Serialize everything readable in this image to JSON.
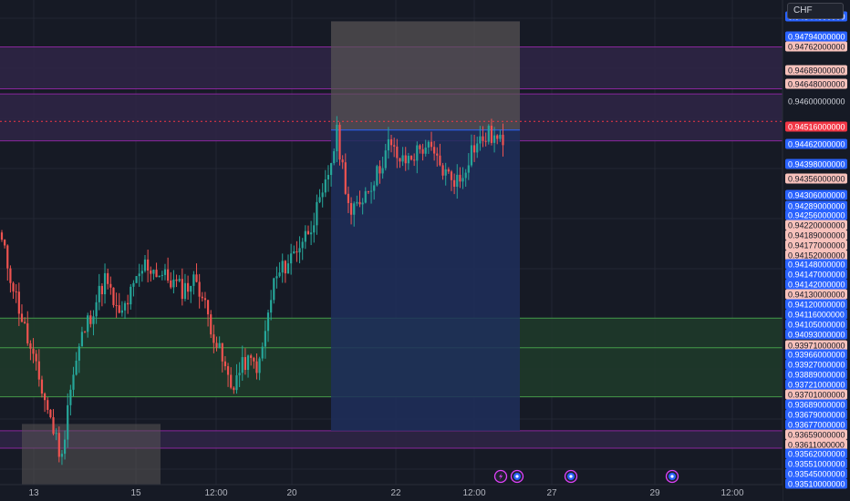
{
  "toolbar": {
    "currency": "CHF"
  },
  "colors": {
    "background": "#161a25",
    "up": "#26a69a",
    "down": "#ef5350",
    "grid": "#232734",
    "zone_purple": "#2d2545",
    "zone_green": "#1e3a2a",
    "zone_grey": "#5a5656",
    "target_blue": "#1e2f5c",
    "label_blue": "#2962ff",
    "label_salmon": "#f7c1bb",
    "label_red": "#f23645"
  },
  "chart_data": {
    "type": "candlestick",
    "ylim": [
      0.9351,
      0.94852
    ],
    "x_ticks": [
      "13",
      "15",
      "12:00",
      "20",
      "22",
      "12:00",
      "27",
      "29",
      "12:00"
    ],
    "price_labels": [
      {
        "text": "0.94844000000",
        "style": "blue"
      },
      {
        "text": "0.94794000000",
        "style": "blue"
      },
      {
        "text": "0.94762000000",
        "style": "salmon"
      },
      {
        "text": "0.94689000000",
        "style": "salmon"
      },
      {
        "text": "0.94648000000",
        "style": "salmon"
      },
      {
        "text": "0.94600000000",
        "style": "plain"
      },
      {
        "text": "0.94516000000",
        "style": "red"
      },
      {
        "text": "0.94462000000",
        "style": "blue"
      },
      {
        "text": "0.94398000000",
        "style": "blue"
      },
      {
        "text": "0.94356000000",
        "style": "salmon"
      },
      {
        "text": "0.94306000000",
        "style": "blue"
      },
      {
        "text": "0.94289000000",
        "style": "blue"
      },
      {
        "text": "0.94256000000",
        "style": "blue"
      },
      {
        "text": "0.94220000000",
        "style": "salmon"
      },
      {
        "text": "0.94189000000",
        "style": "salmon"
      },
      {
        "text": "0.94177000000",
        "style": "salmon"
      },
      {
        "text": "0.94152000000",
        "style": "salmon"
      },
      {
        "text": "0.94148000000",
        "style": "blue"
      },
      {
        "text": "0.94147000000",
        "style": "blue"
      },
      {
        "text": "0.94142000000",
        "style": "blue"
      },
      {
        "text": "0.94130000000",
        "style": "salmon"
      },
      {
        "text": "0.94120000000",
        "style": "blue"
      },
      {
        "text": "0.94116000000",
        "style": "blue"
      },
      {
        "text": "0.94105000000",
        "style": "blue"
      },
      {
        "text": "0.94093000000",
        "style": "blue"
      },
      {
        "text": "0.93971000000",
        "style": "salmon"
      },
      {
        "text": "0.93966000000",
        "style": "blue"
      },
      {
        "text": "0.93927000000",
        "style": "blue"
      },
      {
        "text": "0.93889000000",
        "style": "blue"
      },
      {
        "text": "0.93721000000",
        "style": "blue"
      },
      {
        "text": "0.93701000000",
        "style": "salmon"
      },
      {
        "text": "0.93689000000",
        "style": "blue"
      },
      {
        "text": "0.93679000000",
        "style": "blue"
      },
      {
        "text": "0.93677000000",
        "style": "blue"
      },
      {
        "text": "0.93659000000",
        "style": "salmon"
      },
      {
        "text": "0.93611000000",
        "style": "salmon"
      },
      {
        "text": "0.93562000000",
        "style": "blue"
      },
      {
        "text": "0.93551000000",
        "style": "blue"
      },
      {
        "text": "0.93545000000",
        "style": "blue"
      },
      {
        "text": "0.93510000000",
        "style": "blue"
      }
    ],
    "last_price": 0.94516,
    "zones": [
      {
        "kind": "purple",
        "from": 0.94606,
        "to": 0.94722
      },
      {
        "kind": "purple",
        "from": 0.94462,
        "to": 0.94592
      },
      {
        "kind": "green",
        "from": 0.93889,
        "to": 0.93971
      },
      {
        "kind": "green",
        "from": 0.93753,
        "to": 0.93889
      },
      {
        "kind": "purple",
        "from": 0.93611,
        "to": 0.93659
      }
    ],
    "levels": [
      0.94722,
      0.94606,
      0.94592,
      0.94462,
      0.93971,
      0.93889,
      0.93753,
      0.93659,
      0.93611
    ],
    "position_box": {
      "entry": 0.94492,
      "stop": 0.94793,
      "target": 0.93659
    },
    "grey_box": {
      "top": 0.93678
    },
    "anchors": [
      {
        "i": 0,
        "v": 0.9418
      },
      {
        "i": 5,
        "v": 0.9403
      },
      {
        "i": 10,
        "v": 0.9388
      },
      {
        "i": 16,
        "v": 0.9372
      },
      {
        "i": 21,
        "v": 0.9358
      },
      {
        "i": 23,
        "v": 0.9374
      },
      {
        "i": 28,
        "v": 0.9392
      },
      {
        "i": 36,
        "v": 0.9408
      },
      {
        "i": 41,
        "v": 0.9397
      },
      {
        "i": 50,
        "v": 0.9412
      },
      {
        "i": 58,
        "v": 0.9408
      },
      {
        "i": 63,
        "v": 0.9405
      },
      {
        "i": 68,
        "v": 0.9408
      },
      {
        "i": 75,
        "v": 0.939
      },
      {
        "i": 80,
        "v": 0.9378
      },
      {
        "i": 85,
        "v": 0.9385
      },
      {
        "i": 90,
        "v": 0.9384
      },
      {
        "i": 95,
        "v": 0.9407
      },
      {
        "i": 100,
        "v": 0.9413
      },
      {
        "i": 106,
        "v": 0.942
      },
      {
        "i": 112,
        "v": 0.943
      },
      {
        "i": 117,
        "v": 0.9448
      },
      {
        "i": 122,
        "v": 0.9425
      },
      {
        "i": 126,
        "v": 0.9431
      },
      {
        "i": 131,
        "v": 0.9437
      },
      {
        "i": 135,
        "v": 0.9445
      },
      {
        "i": 140,
        "v": 0.944
      },
      {
        "i": 148,
        "v": 0.9445
      },
      {
        "i": 155,
        "v": 0.9437
      },
      {
        "i": 160,
        "v": 0.9435
      },
      {
        "i": 164,
        "v": 0.9444
      },
      {
        "i": 170,
        "v": 0.9448
      },
      {
        "i": 175,
        "v": 0.9445
      }
    ],
    "event_markers": [
      {
        "icon": "lightning",
        "x": "Nov 23"
      },
      {
        "icon": "us-flag",
        "x": "Nov 23"
      },
      {
        "icon": "us-flag",
        "x": "Nov 27"
      },
      {
        "icon": "us-flag",
        "x": "Nov 29"
      }
    ]
  }
}
